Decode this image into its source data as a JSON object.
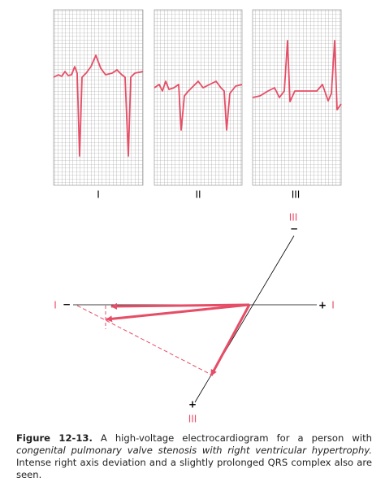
{
  "leads": [
    "I",
    "II",
    "III"
  ],
  "axis_diagram": {
    "lead_i_left": "I",
    "lead_i_minus": "−",
    "lead_i_plus": "+",
    "lead_i_right": "I",
    "lead_iii_top": "III",
    "lead_iii_minus": "−",
    "lead_iii_plus": "+",
    "lead_iii_bottom": "III"
  },
  "caption": {
    "label": "Figure 12-13.",
    "text_1": "A high-voltage electrocardiogram for a person with",
    "italic": "congenital pulmonary valve stenosis with right ventricular hypertrophy.",
    "text_2": "Intense right axis deviation and a slightly prolonged QRS complex also are seen."
  }
}
